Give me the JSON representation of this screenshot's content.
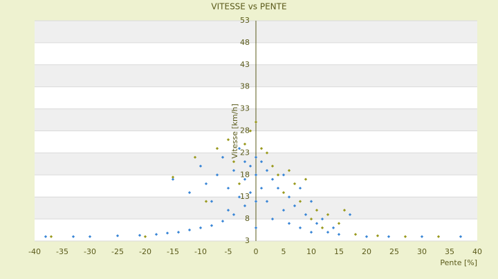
{
  "chart_data": {
    "type": "scatter",
    "title": "VITESSE vs PENTE",
    "x_label": "Pente [%]",
    "y_label": "Vitesse [km/h]",
    "xlim": [
      -40,
      40
    ],
    "xticks": [
      -40,
      -35,
      -30,
      -25,
      -20,
      -15,
      -10,
      -5,
      0,
      5,
      10,
      15,
      20,
      25,
      30,
      35,
      40
    ],
    "ylim": [
      3,
      53
    ],
    "yticks": [
      3,
      8,
      13,
      18,
      23,
      28,
      33,
      38,
      43,
      48,
      53
    ],
    "grid": true,
    "series": [
      {
        "color": "#3a86d6",
        "x": [
          -38,
          -33,
          -30,
          -25,
          -21,
          -18,
          -16,
          -14,
          -12,
          -10,
          -8,
          -6,
          -4,
          -2,
          -1,
          -15,
          -12,
          -10,
          -9,
          -8,
          -7,
          -6,
          -5,
          -5,
          -4,
          -3,
          -3,
          -2,
          -2,
          -1,
          0,
          0,
          0,
          0,
          1,
          1,
          2,
          2,
          3,
          3,
          4,
          5,
          5,
          6,
          6,
          7,
          8,
          8,
          9,
          10,
          10,
          11,
          12,
          13,
          14,
          15,
          17,
          20,
          24,
          30,
          37
        ],
        "values": [
          4,
          4,
          4,
          4.2,
          4.3,
          4.5,
          4.8,
          5,
          5.5,
          6,
          6.5,
          7.5,
          9,
          11,
          14,
          17,
          14,
          20,
          16,
          12,
          18,
          22,
          15,
          10,
          19,
          24,
          13,
          21,
          17,
          20,
          22,
          18,
          12,
          6,
          21,
          15,
          19,
          12,
          17,
          8,
          15,
          18,
          10,
          13,
          7,
          11,
          15,
          6,
          9,
          12,
          5,
          7,
          8,
          5,
          6,
          4.5,
          9,
          4,
          4,
          4,
          4
        ]
      },
      {
        "color": "#9a9a1e",
        "x": [
          -37,
          -20,
          -15,
          -11,
          -9,
          -7,
          -5,
          -4,
          -3,
          -2,
          -1,
          0,
          1,
          2,
          3,
          4,
          5,
          6,
          7,
          8,
          9,
          10,
          11,
          12,
          13,
          15,
          16,
          18,
          22,
          27,
          33
        ],
        "values": [
          4,
          4,
          17.5,
          22,
          12,
          24,
          26,
          21,
          16,
          25,
          28,
          30,
          24,
          23,
          20,
          18,
          14,
          19,
          16,
          12,
          17,
          8,
          10,
          6,
          9,
          7,
          10,
          4.5,
          4.2,
          4,
          4
        ]
      }
    ]
  }
}
